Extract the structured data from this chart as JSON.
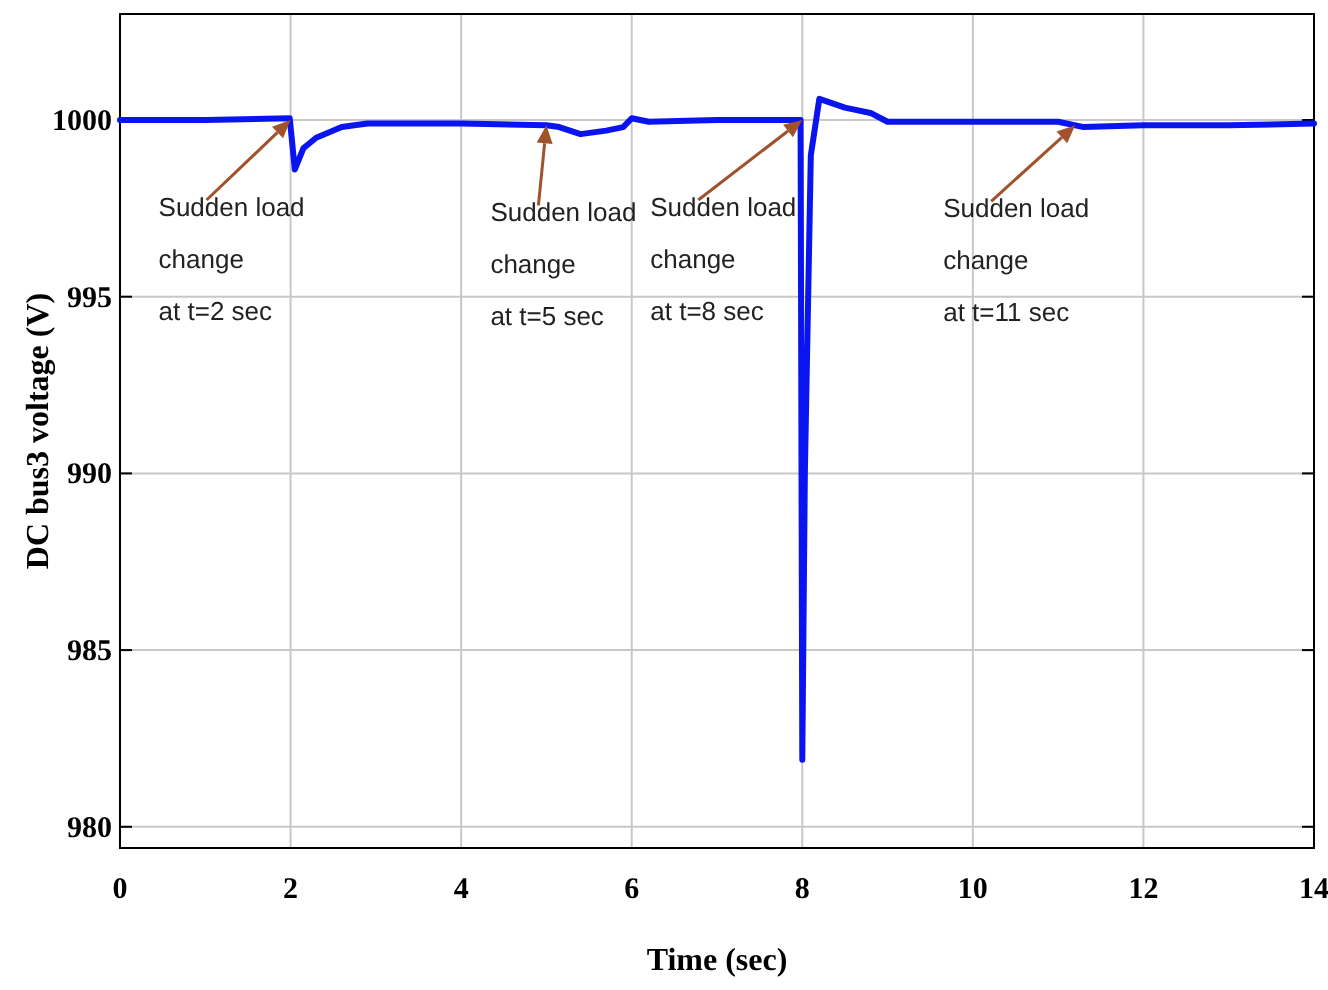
{
  "chart_data": {
    "type": "line",
    "xlabel": "Time (sec)",
    "ylabel": "DC bus3 voltage (V)",
    "xlim": [
      0,
      14
    ],
    "ylim": [
      979.4,
      1003
    ],
    "xticks": [
      0,
      2,
      4,
      6,
      8,
      10,
      12,
      14
    ],
    "yticks": [
      980,
      985,
      990,
      995,
      1000
    ],
    "grid": true,
    "marker": "none",
    "line_style": "solid",
    "series": [
      {
        "color": "#0a14f0",
        "x": [
          0,
          1,
          1.99,
          2.05,
          2.15,
          2.3,
          2.6,
          2.9,
          4,
          5,
          5.15,
          5.4,
          5.7,
          5.9,
          6.0,
          6.2,
          7,
          7.98,
          8.0,
          8.03,
          8.1,
          8.2,
          8.5,
          8.8,
          9.0,
          9.1,
          10,
          11,
          11.3,
          12,
          13,
          14
        ],
        "values": [
          1000,
          1000,
          1000.05,
          998.6,
          999.2,
          999.5,
          999.8,
          999.9,
          999.9,
          999.85,
          999.8,
          999.6,
          999.7,
          999.8,
          1000.05,
          999.95,
          1000,
          1000,
          981.9,
          990,
          999,
          1000.6,
          1000.35,
          1000.2,
          999.95,
          999.95,
          999.95,
          999.95,
          999.8,
          999.85,
          999.85,
          999.9
        ]
      }
    ],
    "annotations": [
      {
        "text": "Sudden load\nchange\nat t=2 sec",
        "x": 2,
        "y": 1000
      },
      {
        "text": "Sudden load\nchange\nat t=5 sec",
        "x": 5,
        "y": 999.85
      },
      {
        "text": "Sudden load\nchange\nat t=8 sec",
        "x": 8,
        "y": 1000
      },
      {
        "text": "Sudden load\nchange\nat t=11 sec",
        "x": 11.2,
        "y": 999.85
      }
    ]
  }
}
